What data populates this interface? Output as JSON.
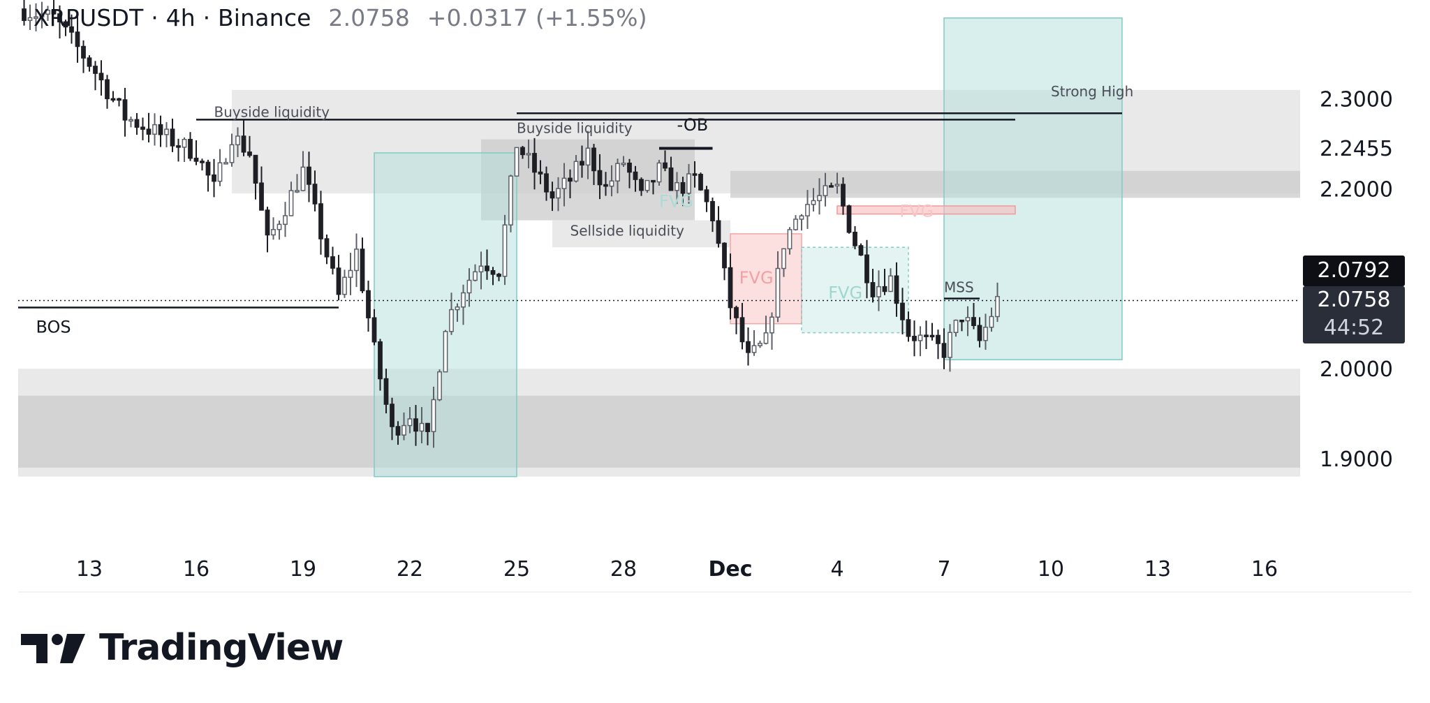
{
  "legend": {
    "symbol": "XRPUSDT · 4h · Binance",
    "price": "2.0758",
    "change": "+0.0317 (+1.55%)"
  },
  "price_tags": {
    "last": "2.0792",
    "current": "2.0758",
    "countdown": "44:52"
  },
  "brand": {
    "name": "TradingView"
  },
  "colors": {
    "candle": "#5d6068",
    "candle_dark": "#1e1f24",
    "zone_gray": "#e5e5e5",
    "zone_dark": "#cbcbcb",
    "teal_box": "#b2dfdb",
    "fvg_red": "#f8bbbb",
    "fvg_teal": "#b2dfdb",
    "text": "#131722"
  },
  "chart_data": {
    "type": "candlestick",
    "title": "",
    "xlabel": "",
    "ylabel": "",
    "ylim": [
      1.82,
      2.41
    ],
    "xlim": [
      "2024-11-11",
      "2024-12-17"
    ],
    "x_ticks": [
      {
        "date": "2024-11-13",
        "label": "13"
      },
      {
        "date": "2024-11-16",
        "label": "16"
      },
      {
        "date": "2024-11-19",
        "label": "19"
      },
      {
        "date": "2024-11-22",
        "label": "22"
      },
      {
        "date": "2024-11-25",
        "label": "25"
      },
      {
        "date": "2024-11-28",
        "label": "28"
      },
      {
        "date": "2024-12-01",
        "label": "Dec"
      },
      {
        "date": "2024-12-04",
        "label": "4"
      },
      {
        "date": "2024-12-07",
        "label": "7"
      },
      {
        "date": "2024-12-10",
        "label": "10"
      },
      {
        "date": "2024-12-13",
        "label": "13"
      },
      {
        "date": "2024-12-16",
        "label": "16"
      }
    ],
    "y_ticks": [
      {
        "value": 2.3,
        "label": "2.3000"
      },
      {
        "value": 2.2455,
        "label": "2.2455"
      },
      {
        "value": 2.2,
        "label": "2.2000"
      },
      {
        "value": 2.0,
        "label": "2.0000"
      },
      {
        "value": 1.9,
        "label": "1.9000"
      }
    ],
    "last_price": 2.0758,
    "path": [
      [
        "2024-11-11",
        2.4
      ],
      [
        "2024-11-12",
        2.39
      ],
      [
        "2024-11-13",
        2.34
      ],
      [
        "2024-11-14",
        2.28
      ],
      [
        "2024-11-15",
        2.26
      ],
      [
        "2024-11-16",
        2.24
      ],
      [
        "2024-11-16 12:00",
        2.2
      ],
      [
        "2024-11-17",
        2.26
      ],
      [
        "2024-11-17 12:00",
        2.24
      ],
      [
        "2024-11-18",
        2.14
      ],
      [
        "2024-11-18 12:00",
        2.18
      ],
      [
        "2024-11-19",
        2.22
      ],
      [
        "2024-11-19 12:00",
        2.15
      ],
      [
        "2024-11-20",
        2.08
      ],
      [
        "2024-11-20 12:00",
        2.13
      ],
      [
        "2024-11-21",
        2.02
      ],
      [
        "2024-11-21 12:00",
        1.93
      ],
      [
        "2024-11-22",
        1.95
      ],
      [
        "2024-11-22 12:00",
        1.92
      ],
      [
        "2024-11-23",
        2.05
      ],
      [
        "2024-11-23 12:00",
        2.09
      ],
      [
        "2024-11-24",
        2.12
      ],
      [
        "2024-11-24 12:00",
        2.11
      ],
      [
        "2024-11-25",
        2.25
      ],
      [
        "2024-11-25 12:00",
        2.22
      ],
      [
        "2024-11-26",
        2.19
      ],
      [
        "2024-11-26 12:00",
        2.21
      ],
      [
        "2024-11-27",
        2.24
      ],
      [
        "2024-11-27 12:00",
        2.2
      ],
      [
        "2024-11-28",
        2.23
      ],
      [
        "2024-11-28 12:00",
        2.19
      ],
      [
        "2024-11-29",
        2.22
      ],
      [
        "2024-11-29 12:00",
        2.2
      ],
      [
        "2024-11-30",
        2.21
      ],
      [
        "2024-11-30 12:00",
        2.17
      ],
      [
        "2024-12-01",
        2.07
      ],
      [
        "2024-12-01 12:00",
        2.01
      ],
      [
        "2024-12-02",
        2.03
      ],
      [
        "2024-12-02 12:00",
        2.14
      ],
      [
        "2024-12-03",
        2.18
      ],
      [
        "2024-12-03 12:00",
        2.19
      ],
      [
        "2024-12-04",
        2.2
      ],
      [
        "2024-12-04 12:00",
        2.14
      ],
      [
        "2024-12-05",
        2.09
      ],
      [
        "2024-12-05 12:00",
        2.1
      ],
      [
        "2024-12-06",
        2.04
      ],
      [
        "2024-12-06 12:00",
        2.03
      ],
      [
        "2024-12-07",
        2.02
      ],
      [
        "2024-12-07 12:00",
        2.06
      ],
      [
        "2024-12-08",
        2.03
      ],
      [
        "2024-12-08 12:00",
        2.0758
      ]
    ],
    "zones": [
      {
        "kind": "range",
        "x0": "2024-11-17",
        "x1": "2024-12-17",
        "y0": 2.195,
        "y1": 2.31
      },
      {
        "kind": "range-dark",
        "x0": "2024-12-01",
        "x1": "2024-12-17",
        "y0": 2.19,
        "y1": 2.22
      },
      {
        "kind": "range",
        "x0": "2024-11-11",
        "x1": "2024-12-17",
        "y0": 1.88,
        "y1": 2.0
      },
      {
        "kind": "range-dark",
        "x0": "2024-11-11",
        "x1": "2024-12-17",
        "y0": 1.89,
        "y1": 1.97
      },
      {
        "kind": "range-dark",
        "x0": "2024-11-24",
        "x1": "2024-11-30",
        "y0": 2.165,
        "y1": 2.255
      },
      {
        "kind": "range",
        "x0": "2024-11-26",
        "x1": "2024-12-01",
        "y0": 2.135,
        "y1": 2.165
      },
      {
        "kind": "box-teal",
        "x0": "2024-11-21",
        "x1": "2024-11-25",
        "y0": 1.88,
        "y1": 2.24
      },
      {
        "kind": "box-teal",
        "x0": "2024-12-07",
        "x1": "2024-12-12",
        "y0": 2.01,
        "y1": 2.39
      },
      {
        "kind": "fvg-red",
        "x0": "2024-12-01",
        "x1": "2024-12-03",
        "y0": 2.05,
        "y1": 2.15
      },
      {
        "kind": "fvg-teal",
        "x0": "2024-12-03",
        "x1": "2024-12-06",
        "y0": 2.04,
        "y1": 2.135
      },
      {
        "kind": "fvg-red-thin",
        "x0": "2024-12-04",
        "x1": "2024-12-09",
        "y0": 2.172,
        "y1": 2.181
      }
    ],
    "lines": [
      {
        "x0": "2024-11-16",
        "x1": "2024-12-09",
        "y": 2.277
      },
      {
        "x0": "2024-11-25",
        "x1": "2024-12-12",
        "y": 2.284
      },
      {
        "x0": "2024-11-29",
        "x1": "2024-11-30 12:00",
        "y": 2.245
      },
      {
        "x0": "2024-11-11",
        "x1": "2024-11-20",
        "y": 2.068
      },
      {
        "x0": "2024-12-07",
        "x1": "2024-12-08",
        "y": 2.078
      }
    ],
    "annotations": [
      {
        "text": "Buyside liquidity",
        "x": "2024-11-16 12:00",
        "y": 2.28,
        "kind": "small"
      },
      {
        "text": "Buyside liquidity",
        "x": "2024-11-25",
        "y": 2.262,
        "kind": "small"
      },
      {
        "text": "-OB",
        "x": "2024-11-29 12:00",
        "y": 2.265,
        "kind": "dark"
      },
      {
        "text": "Sellside liquidity",
        "x": "2024-11-26 12:00",
        "y": 2.148,
        "kind": "small"
      },
      {
        "text": "Strong High",
        "x": "2024-12-10",
        "y": 2.303,
        "kind": "small"
      },
      {
        "text": "MSS",
        "x": "2024-12-07",
        "y": 2.085,
        "kind": "small"
      },
      {
        "text": "BOS",
        "x": "2024-11-11 12:00",
        "y": 2.04,
        "kind": "dark"
      },
      {
        "text": "FVG",
        "x": "2024-12-01 06:00",
        "y": 2.095,
        "kind": "fvg-red"
      },
      {
        "text": "FVG",
        "x": "2024-12-03 18:00",
        "y": 2.078,
        "kind": "fvg-teal"
      },
      {
        "text": "FVG",
        "x": "2024-12-05 18:00",
        "y": 2.169,
        "kind": "fvg-red-faint"
      },
      {
        "text": "FVG",
        "x": "2024-11-29",
        "y": 2.18,
        "kind": "fvg-teal-faint"
      }
    ]
  }
}
